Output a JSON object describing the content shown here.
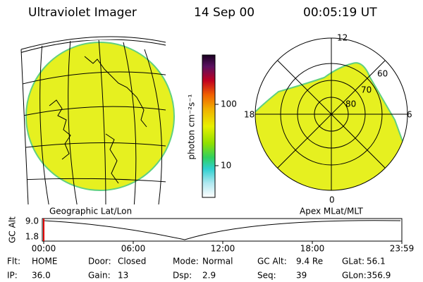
{
  "header": {
    "instrument": "Ultraviolet Imager",
    "date": "14 Sep 00",
    "time": "00:05:19 UT"
  },
  "colorbar": {
    "unit": "photon cm⁻²s⁻¹",
    "ticks": [
      "100",
      "10"
    ]
  },
  "polar": {
    "mlt_labels": [
      "12",
      "18",
      "6",
      "0"
    ],
    "lat_labels": [
      "60",
      "70",
      "80"
    ]
  },
  "captions": {
    "left": "Geographic Lat/Lon",
    "right": "Apex MLat/MLT"
  },
  "altitude": {
    "axis_label": "GC Alt",
    "ticks": [
      "9.0",
      "1.8"
    ],
    "times": [
      "00:00",
      "06:00",
      "12:00",
      "18:00",
      "23:59"
    ]
  },
  "status": {
    "rows": [
      [
        {
          "label": "Flt:",
          "value": "HOME"
        },
        {
          "label": "Door:",
          "value": "Closed"
        },
        {
          "label": "Mode:",
          "value": "Normal"
        },
        {
          "label": "GC Alt:",
          "value": "9.4 Re"
        },
        {
          "label": "GLat:",
          "value": "56.1"
        }
      ],
      [
        {
          "label": "IP:",
          "value": "36.0"
        },
        {
          "label": "Gain:",
          "value": "13"
        },
        {
          "label": "Dsp:",
          "value": "2.9"
        },
        {
          "label": "Seq:",
          "value": "39"
        },
        {
          "label": "GLon:",
          "value": "356.9"
        }
      ]
    ]
  }
}
